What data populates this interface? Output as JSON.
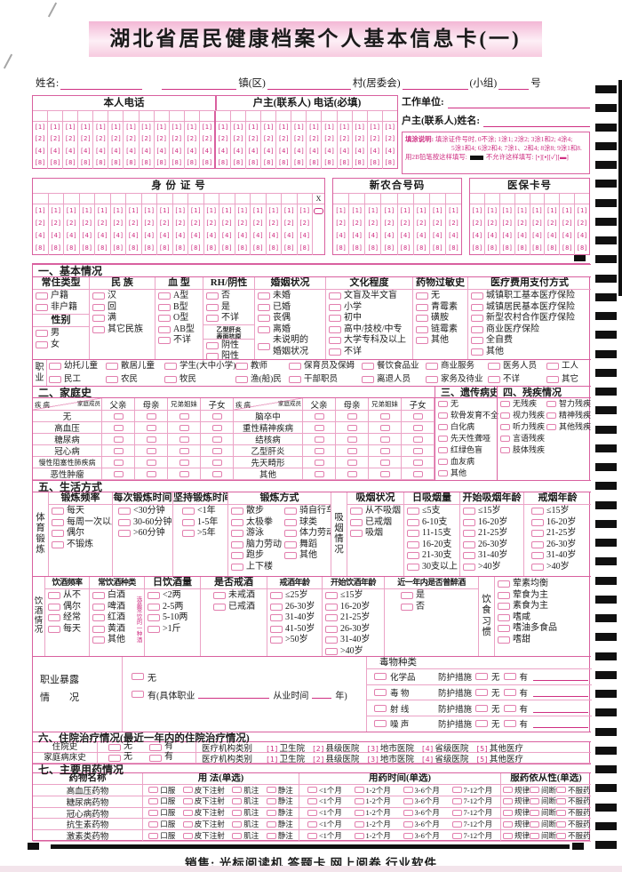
{
  "title": "湖北省居民健康档案个人基本信息卡(一)",
  "footer": "销售: 光标阅读机 答题卡 网上阅卷 行业软件",
  "name_row": {
    "name": "姓名:",
    "town": "镇(区)",
    "village": "村(居委会)",
    "group": "(小组)",
    "tail": "号"
  },
  "phone": {
    "headers": [
      "本人电话",
      "户主(联系人) 电话(必填)"
    ],
    "digits": [
      "[1]",
      "[2]",
      "[4]",
      "[8]"
    ],
    "cols_per_side": 12
  },
  "right_info": {
    "work_unit": "工作单位:",
    "head_name": "户主(联系人)姓名:"
  },
  "fill_note": {
    "title": "填涂说明:",
    "line1": "填涂证件号时, 0不涂; 1涂1; 2涂2; 3涂1和2; 4涂4;",
    "line2": "5涂1和4; 6涂2和4; 7涂1、2和4; 8涂8; 9涂1和8.",
    "pencil_label": "用2B铅笔按这样填写:",
    "wrong_label": "不允许这样填写:",
    "wrong_marks": "[•][▪][✓][▬]"
  },
  "number_grids": [
    {
      "label": "身 份 证 号",
      "cols": 18,
      "has_x": true,
      "x_label": "X"
    },
    {
      "label": "新农合号码",
      "cols": 8,
      "has_x": false
    },
    {
      "label": "医保卡号",
      "cols": 8,
      "has_x": false
    }
  ],
  "basic": {
    "section_title": "一、基本情况",
    "residence": {
      "header": "常住类型",
      "items": [
        "户籍",
        "非户籍"
      ]
    },
    "gender": {
      "header": "性别",
      "items": [
        "男",
        "女"
      ]
    },
    "ethnic": {
      "header": "民 族",
      "items": [
        "汉",
        "回",
        "满",
        "其它民族"
      ]
    },
    "blood": {
      "header": "血 型",
      "items": [
        "A型",
        "B型",
        "O型",
        "AB型",
        "不详"
      ]
    },
    "rh": {
      "header": "RH/阴性",
      "items": [
        "否",
        "是",
        "不详"
      ],
      "sub_header_lines": [
        "乙型肝炎",
        "表面抗原"
      ],
      "sub_items": [
        "阴性",
        "阳性"
      ]
    },
    "marriage": {
      "header": "婚姻状况",
      "items": [
        "未婚",
        "已婚",
        "丧偶",
        "离婚",
        "未说明的\n婚姻状况"
      ]
    },
    "education": {
      "header": "文化程度",
      "items": [
        "文盲及半文盲",
        "小学",
        "初中",
        "高中/技校/中专",
        "大学专科及以上",
        "不详"
      ]
    },
    "allergy": {
      "header": "药物过敏史",
      "items": [
        "无",
        "青霉素",
        "磺胺",
        "链霉素",
        "其他"
      ]
    },
    "payment": {
      "header": "医疗费用支付方式",
      "items": [
        "城镇职工基本医疗保险",
        "城镇居民基本医疗保险",
        "新型农村合作医疗保险",
        "商业医疗保险",
        "全自费",
        "其他"
      ]
    },
    "occupation": {
      "header": "职业",
      "row1": [
        "幼托儿童",
        "散居儿童",
        "学生(大中小学)",
        "教师",
        "保育员及保姆",
        "餐饮食品业",
        "商业服务",
        "医务人员",
        "工人"
      ],
      "row2": [
        "民工",
        "农民",
        "牧民",
        "渔(船)民",
        "干部职员",
        "离退人员",
        "家务及待业",
        "不详",
        "其它"
      ]
    }
  },
  "family": {
    "section_title": "二、家庭史",
    "corner_top": "家庭成员",
    "corner_bottom": "疾 病",
    "members": [
      "父亲",
      "母亲",
      "兄弟姐妹",
      "子女"
    ],
    "left_diseases": [
      "无",
      "高血压",
      "糖尿病",
      "冠心病",
      "慢性阻塞性肺疾病",
      "恶性肿瘤"
    ],
    "right_diseases": [
      "脑卒中",
      "重性精神疾病",
      "结核病",
      "乙型肝炎",
      "先天畸形",
      "其他"
    ]
  },
  "genetic": {
    "section_title": "三、遗传病史",
    "items": [
      "无",
      "软骨发育不全",
      "白化病",
      "先天性聋哑",
      "红绿色盲",
      "血友病",
      "其他"
    ]
  },
  "disability": {
    "section_title": "四、残疾情况",
    "col1": [
      "无残疾",
      "视力残疾",
      "听力残疾",
      "言语残疾",
      "肢体残疾"
    ],
    "col2": [
      "智力残疾",
      "精神残疾",
      "其他残疾"
    ]
  },
  "lifestyle": {
    "section_title": "五、生活方式",
    "exercise_label": "体育锻炼",
    "freq": {
      "header": "锻炼频率",
      "items": [
        "每天",
        "每周一次以上",
        "偶尔",
        "不锻炼"
      ]
    },
    "duration": {
      "header": "每次锻炼时间",
      "items": [
        "<30分钟",
        "30-60分钟",
        ">60分钟"
      ]
    },
    "persist": {
      "header": "坚持锻炼时间",
      "items": [
        "<1年",
        "1-5年",
        ">5年"
      ]
    },
    "mode": {
      "header": "锻炼方式",
      "col1": [
        "散步",
        "太极拳",
        "游泳",
        "脑力劳动",
        "跑步",
        "上下楼"
      ],
      "col2": [
        "骑自行车",
        "球类",
        "体力劳动",
        "舞蹈",
        "其他"
      ]
    },
    "smoke_label": "吸烟情况",
    "smoke_status": {
      "header": "吸烟状况",
      "items": [
        "从不吸烟",
        "已戒烟",
        "吸烟"
      ]
    },
    "smoke_amount": {
      "header": "日吸烟量",
      "items": [
        "≤5支",
        "6-10支",
        "11-15支",
        "16-20支",
        "21-30支",
        "30支以上"
      ]
    },
    "smoke_start": {
      "header": "开始吸烟年龄",
      "items": [
        "≤15岁",
        "16-20岁",
        "21-25岁",
        "26-30岁",
        "31-40岁",
        ">40岁"
      ]
    },
    "smoke_quit": {
      "header": "戒烟年龄",
      "items": [
        "≤15岁",
        "16-20岁",
        "21-25岁",
        "26-30岁",
        "31-40岁",
        ">40岁"
      ]
    },
    "drink_label": "饮酒情况",
    "drink_freq": {
      "header": "饮酒频率",
      "items": [
        "从不",
        "偶尔",
        "经常",
        "每天"
      ]
    },
    "drink_kind": {
      "header": "常饮酒种类",
      "items": [
        "白酒",
        "啤酒",
        "红酒",
        "黄酒",
        "其他"
      ],
      "note": "选最常饮的一种酒"
    },
    "drink_amount": {
      "header": "日饮酒量",
      "items": [
        "<2两",
        "2-5两",
        "5-10两",
        ">1斤"
      ]
    },
    "drink_quit": {
      "header": "是否戒酒",
      "items": [
        "未戒酒",
        "已戒酒"
      ]
    },
    "drink_quit_age": {
      "header": "戒酒年龄",
      "items": [
        "≤25岁",
        "26-30岁",
        "31-40岁",
        "41-50岁",
        ">50岁"
      ]
    },
    "drink_start_age": {
      "header": "开始饮酒年龄",
      "items": [
        "≤15岁",
        "16-20岁",
        "21-25岁",
        "26-30岁",
        "31-40岁",
        ">40岁"
      ]
    },
    "drunk": {
      "header": "近一年内是否曾醉酒",
      "items": [
        "是",
        "否"
      ]
    },
    "diet_label": "饮食习惯",
    "diet": {
      "items": [
        "荤素均衡",
        "荤食为主",
        "素食为主",
        "嗜咸",
        "嗜油多食品",
        "嗜甜"
      ]
    }
  },
  "exposure": {
    "label_line1": "职业暴露",
    "label_line2": "情　　况",
    "none": "无",
    "has_prefix": "有(具体职业",
    "has_mid": "从业时间",
    "has_suffix": "年)",
    "toxin_header": "毒物种类",
    "toxin_rows": [
      "化学品",
      "毒 物",
      "射 线",
      "噪 声"
    ],
    "protect_label": "防护措施",
    "protect_none": "无",
    "protect_has": "有"
  },
  "hospital": {
    "section_title": "六、住院治疗情况(最近一年内的住院治疗情况)",
    "rows": [
      "住院史",
      "家庭病床史"
    ],
    "no": "无",
    "yes": "有",
    "org_label": "医疗机构类别",
    "orgs": [
      {
        "num": "[1]",
        "name": "卫生院"
      },
      {
        "num": "[2]",
        "name": "县级医院"
      },
      {
        "num": "[3]",
        "name": "地市医院"
      },
      {
        "num": "[4]",
        "name": "省级医院"
      },
      {
        "num": "[5]",
        "name": "其他医疗"
      }
    ]
  },
  "medication": {
    "section_title": "七、主要用药情况",
    "headers": [
      "药物名称",
      "用 法(单选)",
      "用药时间(单选)",
      "服药依从性(单选)"
    ],
    "drugs": [
      "高血压药物",
      "糖尿病药物",
      "冠心病药物",
      "抗生素药物",
      "激素类药物"
    ],
    "usage": [
      "口服",
      "皮下注射",
      "肌注",
      "静注"
    ],
    "time": [
      "<1个月",
      "1-2个月",
      "3-6个月",
      "7-12个月"
    ],
    "compliance": [
      "规律",
      "间断",
      "不服药"
    ]
  },
  "colors": {
    "pink_border": "#eba3c6",
    "pink_strong": "#d9609f",
    "magenta": "#cf2f82",
    "black": "#1b1b1b"
  }
}
